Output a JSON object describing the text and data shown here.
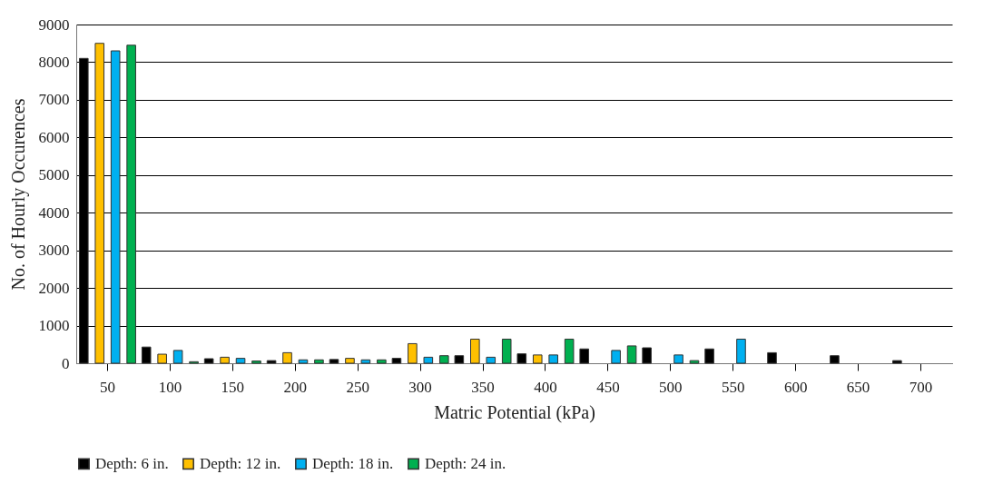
{
  "chart_data": {
    "type": "bar",
    "xlabel": "Matric Potential (kPa)",
    "ylabel": "No. of Hourly Occurences",
    "categories": [
      "50",
      "100",
      "150",
      "200",
      "250",
      "300",
      "350",
      "400",
      "450",
      "500",
      "550",
      "600",
      "650",
      "700"
    ],
    "series": [
      {
        "name": "Depth: 6 in.",
        "color": "#000000",
        "values": [
          8100,
          430,
          120,
          70,
          100,
          130,
          200,
          250,
          380,
          410,
          380,
          280,
          200,
          70
        ]
      },
      {
        "name": "Depth: 12 in.",
        "color": "#ffc000",
        "values": [
          8500,
          240,
          160,
          280,
          130,
          520,
          640,
          220,
          null,
          null,
          null,
          null,
          null,
          null
        ]
      },
      {
        "name": "Depth: 18 in.",
        "color": "#00b0f0",
        "values": [
          8300,
          340,
          130,
          90,
          90,
          160,
          160,
          220,
          340,
          220,
          640,
          null,
          null,
          null
        ]
      },
      {
        "name": "Depth: 24 in.",
        "color": "#00b050",
        "values": [
          8450,
          40,
          60,
          90,
          90,
          200,
          640,
          640,
          460,
          70,
          null,
          null,
          null,
          null
        ]
      }
    ],
    "ylim": [
      0,
      9000
    ],
    "yticks": [
      0,
      1000,
      2000,
      3000,
      4000,
      5000,
      6000,
      7000,
      8000,
      9000
    ],
    "grid": "y",
    "legend": "bottom"
  }
}
